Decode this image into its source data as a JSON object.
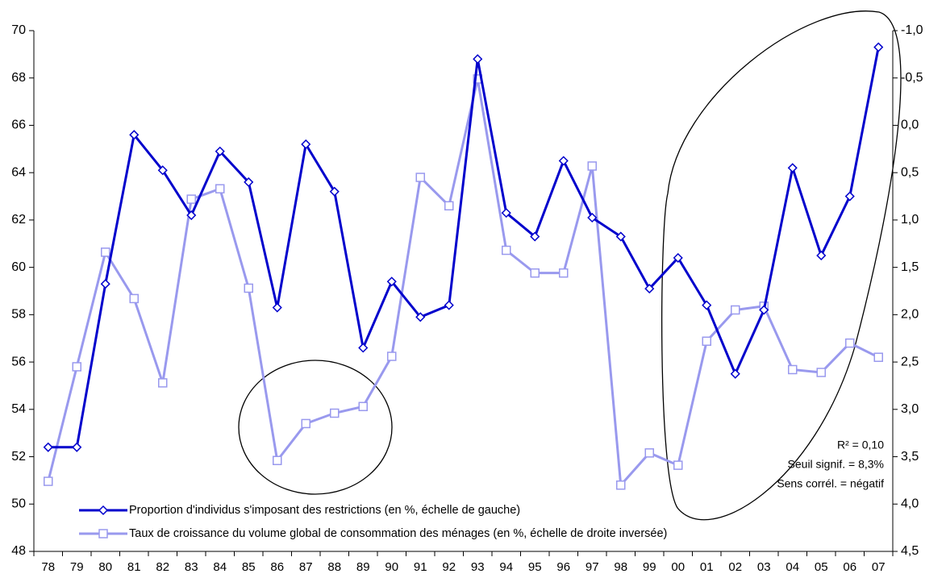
{
  "chart_data": {
    "type": "line",
    "categories": [
      "78",
      "79",
      "80",
      "81",
      "82",
      "83",
      "84",
      "85",
      "86",
      "87",
      "88",
      "89",
      "90",
      "91",
      "92",
      "93",
      "94",
      "95",
      "96",
      "97",
      "98",
      "99",
      "00",
      "01",
      "02",
      "03",
      "04",
      "05",
      "06",
      "07"
    ],
    "series": [
      {
        "name": "Proportion d'individus s'imposant des restrictions (en %, échelle de gauche)",
        "color": "#0000cc",
        "marker": "diamond",
        "values": [
          52.4,
          52.4,
          59.3,
          65.6,
          64.1,
          62.2,
          64.9,
          63.6,
          58.3,
          65.2,
          63.2,
          56.6,
          59.4,
          57.9,
          58.4,
          68.8,
          62.3,
          61.3,
          64.5,
          62.1,
          61.3,
          59.1,
          60.4,
          58.4,
          55.5,
          58.2,
          64.2,
          60.5,
          63.0,
          69.3
        ]
      },
      {
        "name": "Taux de croissance du volume global de consommation des ménages (en %, échelle de droite inversée)",
        "color": "#9999ee",
        "marker": "square",
        "axis": "y2",
        "values": [
          3.76,
          2.55,
          1.34,
          1.83,
          2.72,
          0.78,
          0.67,
          1.72,
          3.54,
          3.15,
          3.04,
          2.97,
          2.44,
          0.55,
          0.85,
          -0.49,
          1.32,
          1.56,
          1.56,
          0.43,
          3.8,
          3.46,
          3.59,
          2.28,
          1.95,
          1.91,
          2.58,
          2.61,
          2.3,
          2.45
        ]
      }
    ],
    "ylim": [
      48,
      70
    ],
    "yticks": [
      48,
      50,
      52,
      54,
      56,
      58,
      60,
      62,
      64,
      66,
      68,
      70
    ],
    "y2lim": [
      4.5,
      -1.0
    ],
    "y2ticks": [
      {
        "value": -1.0,
        "label": "-1,0"
      },
      {
        "value": -0.5,
        "label": "-0,5"
      },
      {
        "value": 0,
        "label": "0,0"
      },
      {
        "value": 0.5,
        "label": "0,5"
      },
      {
        "value": 1.0,
        "label": "1,0"
      },
      {
        "value": 1.5,
        "label": "1,5"
      },
      {
        "value": 2.0,
        "label": "2,0"
      },
      {
        "value": 2.5,
        "label": "2,5"
      },
      {
        "value": 3.0,
        "label": "3,0"
      },
      {
        "value": 3.5,
        "label": "3,5"
      },
      {
        "value": 4.0,
        "label": "4,0"
      },
      {
        "value": 4.5,
        "label": "4,5"
      }
    ],
    "annotations": [
      "R² = 0,10",
      "Seuil signif. = 8,3%",
      "Sens corrél. = négatif"
    ]
  }
}
